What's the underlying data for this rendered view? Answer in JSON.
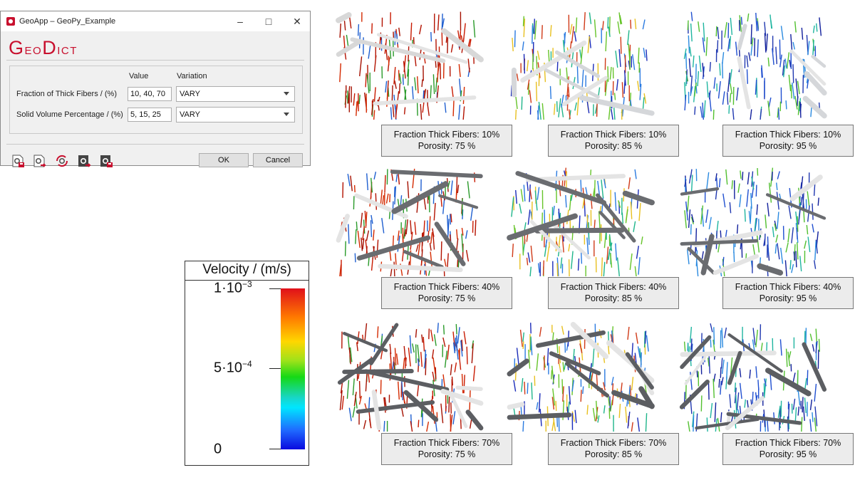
{
  "window": {
    "title": "GeoApp – GeoPy_Example",
    "logo": {
      "first_big": "G",
      "first_small": "eo",
      "second_big": "D",
      "second_small": "ict"
    },
    "columns": {
      "value": "Value",
      "variation": "Variation"
    },
    "rows": [
      {
        "label": "Fraction of Thick Fibers / (%)",
        "value": "10, 40, 70",
        "variation": "VARY"
      },
      {
        "label": "Solid Volume Percentage / (%)",
        "value": "5, 15, 25",
        "variation": "VARY"
      }
    ],
    "toolbar_icons": [
      "save-settings-icon",
      "load-settings-icon",
      "refresh-settings-icon",
      "export-icon",
      "lock-icon"
    ],
    "ok_label": "OK",
    "cancel_label": "Cancel"
  },
  "colorbar": {
    "title": "Velocity / (m/s)",
    "max": {
      "mant": "1·10",
      "exp": "−3"
    },
    "mid": {
      "mant": "5·10",
      "exp": "−4"
    },
    "min": {
      "mant": "0",
      "exp": ""
    },
    "colors": [
      "#e0101a",
      "#ff7a00",
      "#ffd700",
      "#15d915",
      "#00e6ff",
      "#1f6bff",
      "#0a0adf"
    ]
  },
  "results": [
    {
      "fiber": "Fraction Thick Fibers: 10%",
      "porosity": "Porosity: 75 %"
    },
    {
      "fiber": "Fraction Thick Fibers: 10%",
      "porosity": "Porosity: 85 %"
    },
    {
      "fiber": "Fraction Thick Fibers: 10%",
      "porosity": "Porosity: 95 %"
    },
    {
      "fiber": "Fraction Thick Fibers: 40%",
      "porosity": "Porosity: 75 %"
    },
    {
      "fiber": "Fraction Thick Fibers: 40%",
      "porosity": "Porosity: 85 %"
    },
    {
      "fiber": "Fraction Thick Fibers: 40%",
      "porosity": "Porosity: 95 %"
    },
    {
      "fiber": "Fraction Thick Fibers: 70%",
      "porosity": "Porosity: 75 %"
    },
    {
      "fiber": "Fraction Thick Fibers: 70%",
      "porosity": "Porosity: 85 %"
    },
    {
      "fiber": "Fraction Thick Fibers: 70%",
      "porosity": "Porosity: 95 %"
    }
  ]
}
